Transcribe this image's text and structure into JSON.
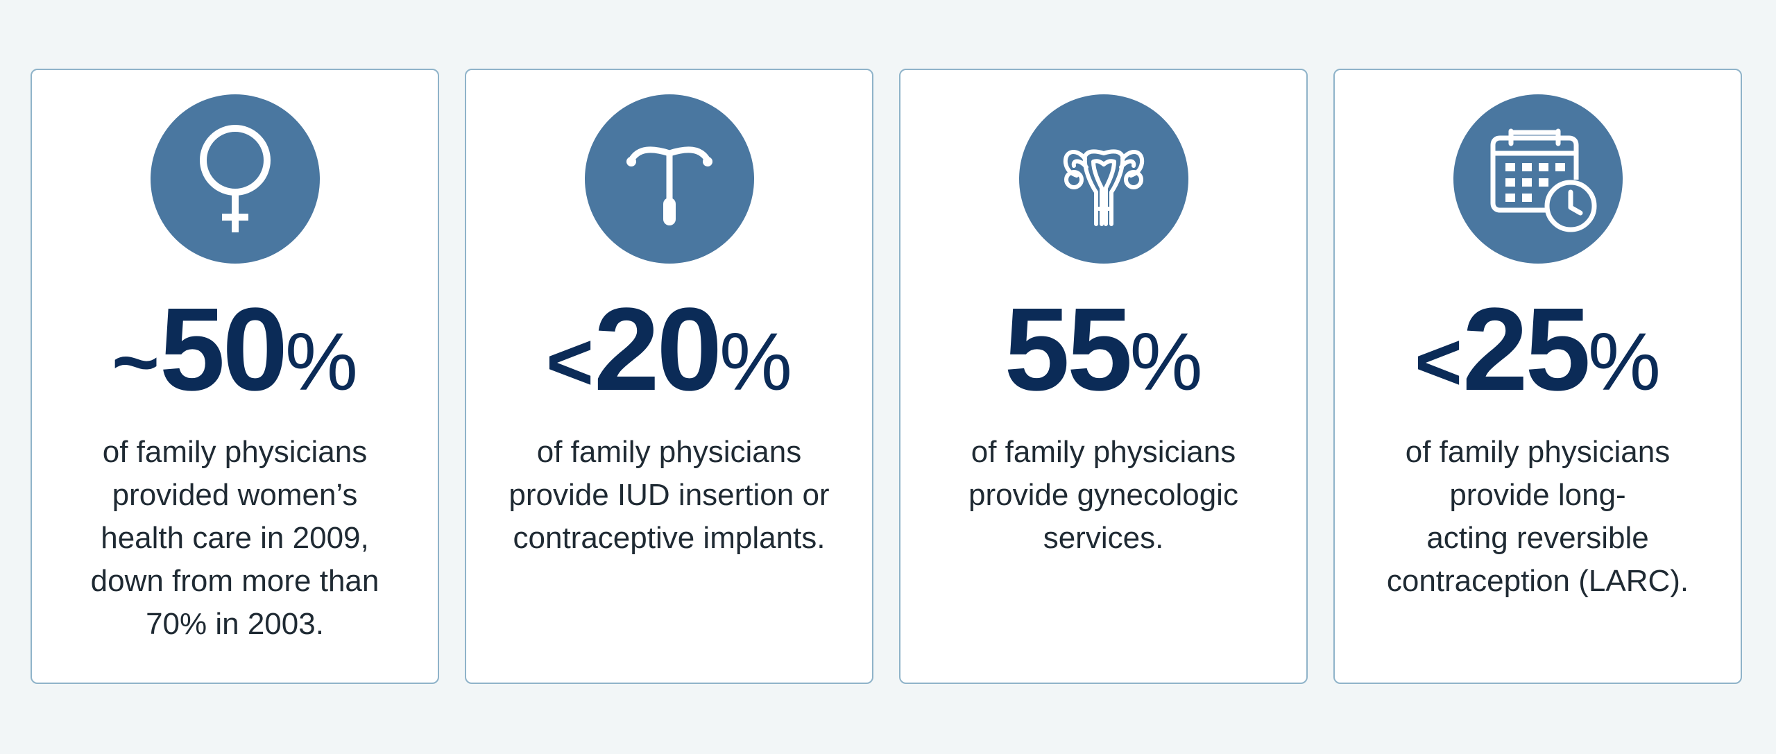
{
  "colors": {
    "background": "#f2f6f7",
    "card": "#ffffff",
    "card_border": "#8fb3c9",
    "icon_circle": "#4a77a0",
    "stat_text": "#0b2b57",
    "body_text": "#1f2a33"
  },
  "cards": [
    {
      "icon": "female-symbol-icon",
      "stat": {
        "prefix": "~",
        "number": "50",
        "unit": "%"
      },
      "lines": [
        "of family physicians",
        "provided women’s",
        "health care in 2009,",
        "down from more than",
        "70% in 2003."
      ]
    },
    {
      "icon": "iud-icon",
      "stat": {
        "prefix": "<",
        "number": "20",
        "unit": "%"
      },
      "lines": [
        "of family physicians",
        "provide IUD insertion or",
        "contraceptive implants."
      ]
    },
    {
      "icon": "uterus-icon",
      "stat": {
        "prefix": "",
        "number": "55",
        "unit": "%"
      },
      "lines": [
        "of family physicians",
        "provide gynecologic",
        "services."
      ]
    },
    {
      "icon": "calendar-clock-icon",
      "stat": {
        "prefix": "<",
        "number": "25",
        "unit": "%"
      },
      "lines": [
        "of family physicians",
        "provide long-",
        "acting reversible",
        "contraception (LARC)."
      ]
    }
  ]
}
